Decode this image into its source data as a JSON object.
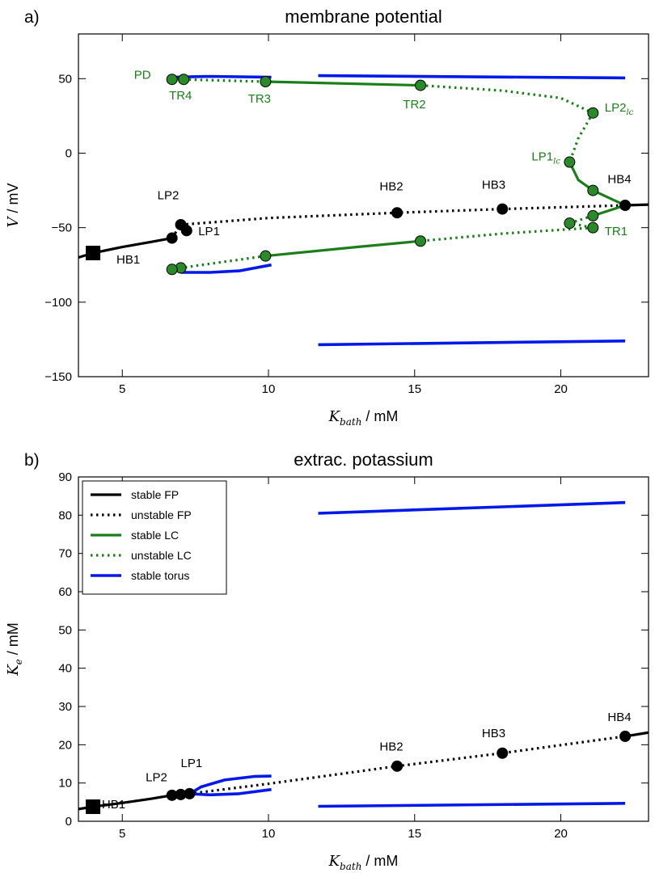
{
  "colors": {
    "black": "#000000",
    "green": "#1a7f1a",
    "green_marker": "#2a8a2a",
    "blue": "#0018e8"
  },
  "chart_data": [
    {
      "type": "line",
      "panel_label": "a)",
      "title": "membrane potential",
      "xlabel": {
        "main": "K",
        "sub": "bath",
        "unit": " / mM"
      },
      "ylabel": {
        "main": "V",
        "unit": " / mV"
      },
      "xlim": [
        3.5,
        23
      ],
      "ylim": [
        -150,
        80
      ],
      "xticks": [
        5,
        10,
        15,
        20
      ],
      "yticks": [
        -150,
        -100,
        -50,
        0,
        50
      ],
      "ytick_labels": [
        "−150",
        "−100",
        "−50",
        "0",
        "50"
      ],
      "grid": false,
      "series": [
        {
          "style": "stable-fp",
          "points": [
            [
              3.5,
              -70
            ],
            [
              4.0,
              -67
            ],
            [
              5.0,
              -63
            ],
            [
              6.0,
              -59.5
            ],
            [
              6.7,
              -57
            ]
          ]
        },
        {
          "style": "unstable-fp",
          "points": [
            [
              6.7,
              -57
            ],
            [
              7.0,
              -48
            ],
            [
              7.2,
              -52
            ]
          ]
        },
        {
          "style": "unstable-fp",
          "points": [
            [
              7.0,
              -48
            ],
            [
              10,
              -43.5
            ],
            [
              14.4,
              -40
            ],
            [
              18,
              -37.5
            ],
            [
              22.2,
              -35
            ]
          ]
        },
        {
          "style": "stable-fp",
          "points": [
            [
              22.2,
              -35
            ],
            [
              23,
              -34.5
            ]
          ]
        },
        {
          "style": "stable-torus",
          "points": [
            [
              6.7,
              51
            ],
            [
              8,
              51.5
            ],
            [
              10.1,
              51
            ]
          ]
        },
        {
          "style": "unstable-lc",
          "points": [
            [
              6.7,
              49.5
            ],
            [
              7.0,
              49.5
            ],
            [
              9.9,
              48
            ]
          ]
        },
        {
          "style": "stable-lc",
          "points": [
            [
              9.9,
              48
            ],
            [
              15.2,
              45.5
            ]
          ]
        },
        {
          "style": "unstable-lc",
          "points": [
            [
              15.2,
              45.5
            ],
            [
              18,
              42
            ],
            [
              20,
              37
            ],
            [
              21.1,
              27
            ]
          ]
        },
        {
          "style": "unstable-lc",
          "points": [
            [
              21.1,
              27
            ],
            [
              20.6,
              10
            ],
            [
              20.3,
              -6
            ]
          ]
        },
        {
          "style": "stable-lc",
          "points": [
            [
              20.3,
              -6
            ],
            [
              20.6,
              -18
            ],
            [
              21.1,
              -25
            ],
            [
              22.2,
              -35
            ]
          ]
        },
        {
          "style": "stable-lc",
          "points": [
            [
              22.2,
              -35
            ],
            [
              21.1,
              -42
            ]
          ]
        },
        {
          "style": "unstable-lc",
          "points": [
            [
              21.1,
              -42
            ],
            [
              20.3,
              -47
            ],
            [
              21.1,
              -50
            ]
          ]
        },
        {
          "style": "unstable-lc",
          "points": [
            [
              21.1,
              -50
            ],
            [
              18,
              -54
            ],
            [
              15.2,
              -59
            ]
          ]
        },
        {
          "style": "stable-lc",
          "points": [
            [
              15.2,
              -59
            ],
            [
              13,
              -63
            ],
            [
              9.9,
              -69
            ]
          ]
        },
        {
          "style": "unstable-lc",
          "points": [
            [
              9.9,
              -69
            ],
            [
              7.0,
              -77
            ],
            [
              6.7,
              -78
            ]
          ]
        },
        {
          "style": "stable-torus",
          "points": [
            [
              7.0,
              -80
            ],
            [
              8,
              -80
            ],
            [
              9.0,
              -79
            ],
            [
              10.1,
              -75
            ]
          ]
        },
        {
          "style": "stable-torus",
          "points": [
            [
              11.7,
              52
            ],
            [
              22.2,
              50.5
            ]
          ]
        },
        {
          "style": "stable-torus",
          "points": [
            [
              11.7,
              -128.5
            ],
            [
              22.2,
              -126
            ]
          ]
        }
      ],
      "points": [
        {
          "x": 4.0,
          "y": -67,
          "color": "black",
          "shape": "square"
        },
        {
          "x": 6.7,
          "y": -57,
          "color": "black"
        },
        {
          "x": 7.0,
          "y": -48,
          "color": "black"
        },
        {
          "x": 7.2,
          "y": -52,
          "color": "black"
        },
        {
          "x": 14.4,
          "y": -40,
          "color": "black"
        },
        {
          "x": 18.0,
          "y": -37.5,
          "color": "black"
        },
        {
          "x": 22.2,
          "y": -35,
          "color": "black"
        },
        {
          "x": 6.7,
          "y": 49.5,
          "color": "green"
        },
        {
          "x": 7.1,
          "y": 49.5,
          "color": "green"
        },
        {
          "x": 9.9,
          "y": 48,
          "color": "green"
        },
        {
          "x": 15.2,
          "y": 45.5,
          "color": "green"
        },
        {
          "x": 21.1,
          "y": 27,
          "color": "green"
        },
        {
          "x": 20.3,
          "y": -6,
          "color": "green"
        },
        {
          "x": 21.1,
          "y": -25,
          "color": "green"
        },
        {
          "x": 21.1,
          "y": -42,
          "color": "green"
        },
        {
          "x": 20.3,
          "y": -47,
          "color": "green"
        },
        {
          "x": 21.1,
          "y": -50,
          "color": "green"
        },
        {
          "x": 15.2,
          "y": -59,
          "color": "green"
        },
        {
          "x": 9.9,
          "y": -69,
          "color": "green"
        },
        {
          "x": 7.0,
          "y": -77,
          "color": "green"
        },
        {
          "x": 6.7,
          "y": -78,
          "color": "green"
        }
      ],
      "annotations": [
        {
          "text": "PD",
          "x": 5.4,
          "y": 50,
          "color": "green"
        },
        {
          "text": "TR4",
          "x": 6.6,
          "y": 36,
          "color": "green"
        },
        {
          "text": "TR3",
          "x": 9.3,
          "y": 34,
          "color": "green"
        },
        {
          "text": "TR2",
          "x": 14.6,
          "y": 30,
          "color": "green"
        },
        {
          "text": "LP2",
          "sub": "lc",
          "x": 21.5,
          "y": 28,
          "color": "green"
        },
        {
          "text": "LP1",
          "sub": "lc",
          "x": 19.0,
          "y": -5,
          "color": "green"
        },
        {
          "text": "HB4",
          "x": 21.6,
          "y": -20,
          "color": "black"
        },
        {
          "text": "HB3",
          "x": 17.3,
          "y": -24,
          "color": "black"
        },
        {
          "text": "HB2",
          "x": 13.8,
          "y": -25,
          "color": "black"
        },
        {
          "text": "LP2",
          "x": 6.2,
          "y": -31,
          "color": "black"
        },
        {
          "text": "LP1",
          "x": 7.6,
          "y": -55,
          "color": "black"
        },
        {
          "text": "HB1",
          "x": 4.8,
          "y": -74,
          "color": "black"
        },
        {
          "text": "TR1",
          "x": 21.5,
          "y": -55,
          "color": "green"
        }
      ]
    },
    {
      "type": "line",
      "panel_label": "b)",
      "title": "extrac. potassium",
      "xlabel": {
        "main": "K",
        "sub": "bath",
        "unit": " / mM"
      },
      "ylabel": {
        "main": "K",
        "sub": "e",
        "unit": " / mM"
      },
      "xlim": [
        3.5,
        23
      ],
      "ylim": [
        0,
        90
      ],
      "xticks": [
        5,
        10,
        15,
        20
      ],
      "yticks": [
        0,
        10,
        20,
        30,
        40,
        50,
        60,
        70,
        80,
        90
      ],
      "ytick_labels": [
        "0",
        "10",
        "20",
        "30",
        "40",
        "50",
        "60",
        "70",
        "80",
        "90"
      ],
      "grid": false,
      "legend": {
        "placement": "top-left",
        "entries": [
          {
            "label": "stable FP",
            "style": "stable-fp"
          },
          {
            "label": "unstable FP",
            "style": "unstable-fp"
          },
          {
            "label": "stable LC",
            "style": "stable-lc"
          },
          {
            "label": "unstable LC",
            "style": "unstable-lc"
          },
          {
            "label": "stable torus",
            "style": "stable-torus"
          }
        ]
      },
      "series": [
        {
          "style": "stable-fp",
          "points": [
            [
              3.5,
              3.2
            ],
            [
              4.0,
              3.8
            ],
            [
              5.0,
              4.8
            ],
            [
              6.0,
              5.9
            ],
            [
              6.7,
              6.8
            ]
          ]
        },
        {
          "style": "unstable-fp",
          "points": [
            [
              6.7,
              6.8
            ],
            [
              7.0,
              7.0
            ],
            [
              7.3,
              7.2
            ],
            [
              10,
              9.8
            ],
            [
              14.4,
              14.4
            ],
            [
              18,
              17.8
            ],
            [
              22.2,
              22.2
            ]
          ]
        },
        {
          "style": "stable-fp",
          "points": [
            [
              22.2,
              22.2
            ],
            [
              23,
              23.2
            ]
          ]
        },
        {
          "style": "stable-torus",
          "points": [
            [
              7.3,
              7.2
            ],
            [
              7.7,
              9.0
            ],
            [
              8.5,
              10.8
            ],
            [
              9.5,
              11.7
            ],
            [
              10.1,
              11.8
            ]
          ]
        },
        {
          "style": "stable-torus",
          "points": [
            [
              7.3,
              7.2
            ],
            [
              8.0,
              6.9
            ],
            [
              9.0,
              7.2
            ],
            [
              10.1,
              8.3
            ]
          ]
        },
        {
          "style": "stable-torus",
          "points": [
            [
              11.7,
              80.5
            ],
            [
              22.2,
              83.3
            ]
          ]
        },
        {
          "style": "stable-torus",
          "points": [
            [
              11.7,
              3.9
            ],
            [
              22.2,
              4.7
            ]
          ]
        }
      ],
      "points": [
        {
          "x": 4.0,
          "y": 3.8,
          "color": "black",
          "shape": "square"
        },
        {
          "x": 6.7,
          "y": 6.8,
          "color": "black"
        },
        {
          "x": 7.0,
          "y": 7.0,
          "color": "black"
        },
        {
          "x": 7.3,
          "y": 7.2,
          "color": "black"
        },
        {
          "x": 14.4,
          "y": 14.4,
          "color": "black"
        },
        {
          "x": 18.0,
          "y": 17.8,
          "color": "black"
        },
        {
          "x": 22.2,
          "y": 22.2,
          "color": "black"
        }
      ],
      "annotations": [
        {
          "text": "HB1",
          "x": 4.3,
          "y": 3.4,
          "color": "black"
        },
        {
          "text": "LP2",
          "x": 5.8,
          "y": 10.5,
          "color": "black"
        },
        {
          "text": "LP1",
          "x": 7.0,
          "y": 14.2,
          "color": "black"
        },
        {
          "text": "HB2",
          "x": 13.8,
          "y": 18.5,
          "color": "black"
        },
        {
          "text": "HB3",
          "x": 17.3,
          "y": 22.0,
          "color": "black"
        },
        {
          "text": "HB4",
          "x": 21.6,
          "y": 26.2,
          "color": "black"
        }
      ]
    }
  ]
}
